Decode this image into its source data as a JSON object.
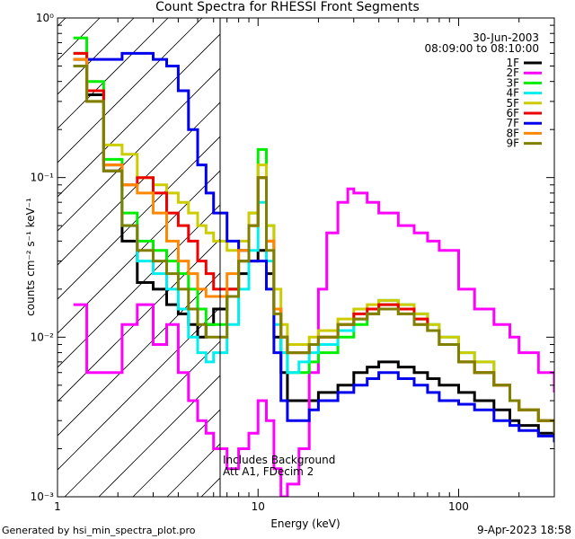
{
  "title": "Count Spectra for RHESSI Front Segments",
  "footer": {
    "generated_by": "Generated by hsi_min_spectra_plot.pro",
    "timestamp": "9-Apr-2023 18:58"
  },
  "annotation": {
    "line1": "Includes Background",
    "line2": "Att A1, FDecim 2"
  },
  "legend_header": {
    "date": "30-Jun-2003",
    "time_range": "08:09:00 to 08:10:00"
  },
  "chart_data": {
    "type": "line",
    "title": "Count Spectra for RHESSI Front Segments",
    "xlabel": "Energy (keV)",
    "ylabel": "counts cm⁻² s⁻¹ keV⁻¹",
    "x_scale": "log",
    "y_scale": "log",
    "xlim": [
      1,
      300
    ],
    "ylim": [
      0.001,
      1
    ],
    "x_ticks": [
      1,
      10,
      100
    ],
    "x_tick_labels": [
      "1",
      "10",
      "100"
    ],
    "y_ticks": [
      0.001,
      0.01,
      0.1,
      1
    ],
    "y_tick_labels": [
      "10⁻³",
      "10⁻²",
      "10⁻¹",
      "10⁰"
    ],
    "shaded_region": {
      "x_from": 1,
      "x_to": 6,
      "style": "diagonal hatch"
    },
    "legend_position": "top-right",
    "series": [
      {
        "name": "1F",
        "color": "#000000",
        "x": [
          1.2,
          1.4,
          1.7,
          2.1,
          2.5,
          3,
          3.5,
          4,
          4.5,
          5,
          5.5,
          6,
          7,
          8,
          9,
          10,
          11,
          12,
          13,
          14,
          16,
          18,
          20,
          25,
          30,
          35,
          40,
          50,
          60,
          70,
          80,
          100,
          120,
          150,
          180,
          200,
          250,
          300
        ],
        "y": [
          0.55,
          0.33,
          0.11,
          0.04,
          0.022,
          0.02,
          0.016,
          0.014,
          0.012,
          0.01,
          0.012,
          0.015,
          0.02,
          0.025,
          0.03,
          0.035,
          0.025,
          0.01,
          0.006,
          0.004,
          0.004,
          0.004,
          0.0045,
          0.005,
          0.006,
          0.0065,
          0.007,
          0.0065,
          0.006,
          0.0055,
          0.005,
          0.0045,
          0.004,
          0.0035,
          0.003,
          0.0028,
          0.0025,
          0.0022
        ]
      },
      {
        "name": "2F",
        "color": "#ff00ff",
        "x": [
          1.2,
          1.4,
          1.7,
          2.1,
          2.5,
          3,
          3.5,
          4,
          4.5,
          5,
          5.5,
          6,
          7,
          8,
          9,
          10,
          11,
          12,
          13,
          14,
          16,
          18,
          20,
          22,
          25,
          28,
          30,
          35,
          40,
          50,
          60,
          70,
          80,
          100,
          120,
          150,
          180,
          200,
          250,
          300
        ],
        "y": [
          0.016,
          0.006,
          0.006,
          0.012,
          0.016,
          0.009,
          0.012,
          0.006,
          0.004,
          0.003,
          0.0025,
          0.002,
          0.0015,
          0.002,
          0.0025,
          0.004,
          0.003,
          0.0015,
          0.001,
          0.0012,
          0.002,
          0.006,
          0.02,
          0.045,
          0.07,
          0.085,
          0.08,
          0.07,
          0.06,
          0.05,
          0.045,
          0.04,
          0.035,
          0.02,
          0.015,
          0.012,
          0.01,
          0.008,
          0.006,
          0.0045
        ]
      },
      {
        "name": "3F",
        "color": "#00ee00",
        "x": [
          1.2,
          1.4,
          1.7,
          2.1,
          2.5,
          3,
          3.5,
          4,
          4.5,
          5,
          5.5,
          6,
          7,
          8,
          9,
          10,
          11,
          12,
          13,
          14,
          16,
          18,
          20,
          25,
          30,
          35,
          40,
          50,
          60,
          70,
          80,
          100,
          120,
          150,
          180,
          200,
          250,
          300
        ],
        "y": [
          0.75,
          0.4,
          0.13,
          0.06,
          0.04,
          0.035,
          0.03,
          0.025,
          0.02,
          0.015,
          0.012,
          0.012,
          0.02,
          0.03,
          0.06,
          0.15,
          0.05,
          0.015,
          0.008,
          0.006,
          0.006,
          0.007,
          0.008,
          0.01,
          0.012,
          0.014,
          0.016,
          0.015,
          0.013,
          0.011,
          0.009,
          0.007,
          0.006,
          0.005,
          0.004,
          0.0035,
          0.003,
          0.0025
        ]
      },
      {
        "name": "4F",
        "color": "#00eeee",
        "x": [
          1.2,
          1.4,
          1.7,
          2.1,
          2.5,
          3,
          3.5,
          4,
          4.5,
          5,
          5.5,
          6,
          7,
          8,
          9,
          10,
          11,
          12,
          13,
          14,
          16,
          18,
          20,
          25,
          30,
          35,
          40,
          50,
          60,
          70,
          80,
          100,
          120,
          150,
          180,
          200,
          250,
          300
        ],
        "y": [
          0.6,
          0.35,
          0.12,
          0.05,
          0.03,
          0.025,
          0.02,
          0.015,
          0.01,
          0.008,
          0.007,
          0.008,
          0.012,
          0.02,
          0.035,
          0.07,
          0.03,
          0.012,
          0.008,
          0.006,
          0.007,
          0.008,
          0.009,
          0.011,
          0.013,
          0.015,
          0.017,
          0.016,
          0.014,
          0.012,
          0.01,
          0.008,
          0.007,
          0.005,
          0.004,
          0.0035,
          0.003,
          0.0025
        ]
      },
      {
        "name": "5F",
        "color": "#cccc00",
        "x": [
          1.2,
          1.4,
          1.7,
          2.1,
          2.5,
          3,
          3.5,
          4,
          4.5,
          5,
          5.5,
          6,
          7,
          8,
          9,
          10,
          11,
          12,
          13,
          14,
          16,
          18,
          20,
          25,
          30,
          35,
          40,
          50,
          60,
          70,
          80,
          100,
          120,
          150,
          180,
          200,
          250,
          300
        ],
        "y": [
          0.6,
          0.35,
          0.16,
          0.14,
          0.1,
          0.09,
          0.08,
          0.07,
          0.06,
          0.05,
          0.045,
          0.04,
          0.035,
          0.04,
          0.06,
          0.12,
          0.05,
          0.02,
          0.012,
          0.009,
          0.009,
          0.01,
          0.011,
          0.013,
          0.015,
          0.016,
          0.017,
          0.016,
          0.014,
          0.012,
          0.01,
          0.008,
          0.007,
          0.005,
          0.004,
          0.0035,
          0.003,
          0.0025
        ]
      },
      {
        "name": "6F",
        "color": "#ee0000",
        "x": [
          1.2,
          1.4,
          1.7,
          2.1,
          2.5,
          3,
          3.5,
          4,
          4.5,
          5,
          5.5,
          6,
          7,
          8,
          9,
          10,
          11,
          12,
          13,
          14,
          16,
          18,
          20,
          25,
          30,
          35,
          40,
          50,
          60,
          70,
          80,
          100,
          120,
          150,
          180,
          200,
          250,
          300
        ],
        "y": [
          0.6,
          0.35,
          0.12,
          0.09,
          0.1,
          0.08,
          0.06,
          0.05,
          0.04,
          0.03,
          0.025,
          0.02,
          0.02,
          0.03,
          0.05,
          0.1,
          0.04,
          0.015,
          0.01,
          0.008,
          0.008,
          0.009,
          0.01,
          0.012,
          0.014,
          0.015,
          0.016,
          0.015,
          0.013,
          0.011,
          0.009,
          0.007,
          0.006,
          0.005,
          0.004,
          0.0035,
          0.003,
          0.0025
        ]
      },
      {
        "name": "7F",
        "color": "#0000ee",
        "x": [
          1.2,
          1.4,
          1.7,
          2.1,
          2.5,
          3,
          3.5,
          4,
          4.5,
          5,
          5.5,
          6,
          7,
          8,
          9,
          10,
          11,
          12,
          13,
          14,
          16,
          18,
          20,
          25,
          30,
          35,
          40,
          50,
          60,
          70,
          80,
          100,
          120,
          150,
          180,
          200,
          250,
          300
        ],
        "y": [
          0.5,
          0.55,
          0.55,
          0.6,
          0.6,
          0.55,
          0.5,
          0.35,
          0.2,
          0.12,
          0.08,
          0.06,
          0.04,
          0.035,
          0.03,
          0.03,
          0.02,
          0.008,
          0.004,
          0.003,
          0.003,
          0.0035,
          0.004,
          0.0045,
          0.005,
          0.0055,
          0.006,
          0.0055,
          0.005,
          0.0045,
          0.004,
          0.0038,
          0.0035,
          0.003,
          0.0028,
          0.0026,
          0.0024,
          0.0022
        ]
      },
      {
        "name": "8F",
        "color": "#ff8800",
        "x": [
          1.2,
          1.4,
          1.7,
          2.1,
          2.5,
          3,
          3.5,
          4,
          4.5,
          5,
          5.5,
          6,
          7,
          8,
          9,
          10,
          11,
          12,
          13,
          14,
          16,
          18,
          20,
          25,
          30,
          35,
          40,
          50,
          60,
          70,
          80,
          100,
          120,
          150,
          180,
          200,
          250,
          300
        ],
        "y": [
          0.55,
          0.3,
          0.12,
          0.09,
          0.08,
          0.06,
          0.04,
          0.03,
          0.025,
          0.02,
          0.018,
          0.018,
          0.025,
          0.035,
          0.05,
          0.1,
          0.04,
          0.015,
          0.01,
          0.008,
          0.008,
          0.009,
          0.01,
          0.012,
          0.013,
          0.014,
          0.015,
          0.014,
          0.012,
          0.011,
          0.009,
          0.007,
          0.006,
          0.005,
          0.004,
          0.0035,
          0.003,
          0.0025
        ]
      },
      {
        "name": "9F",
        "color": "#808000",
        "x": [
          1.2,
          1.4,
          1.7,
          2.1,
          2.5,
          3,
          3.5,
          4,
          4.5,
          5,
          5.5,
          6,
          7,
          8,
          9,
          10,
          11,
          12,
          13,
          14,
          16,
          18,
          20,
          25,
          30,
          35,
          40,
          50,
          60,
          70,
          80,
          100,
          120,
          150,
          180,
          200,
          250,
          300
        ],
        "y": [
          0.5,
          0.3,
          0.11,
          0.05,
          0.035,
          0.03,
          0.025,
          0.02,
          0.015,
          0.012,
          0.01,
          0.01,
          0.018,
          0.03,
          0.05,
          0.1,
          0.035,
          0.014,
          0.01,
          0.008,
          0.008,
          0.009,
          0.01,
          0.012,
          0.013,
          0.014,
          0.015,
          0.014,
          0.012,
          0.011,
          0.009,
          0.007,
          0.006,
          0.005,
          0.004,
          0.0035,
          0.003,
          0.0025
        ]
      }
    ]
  }
}
